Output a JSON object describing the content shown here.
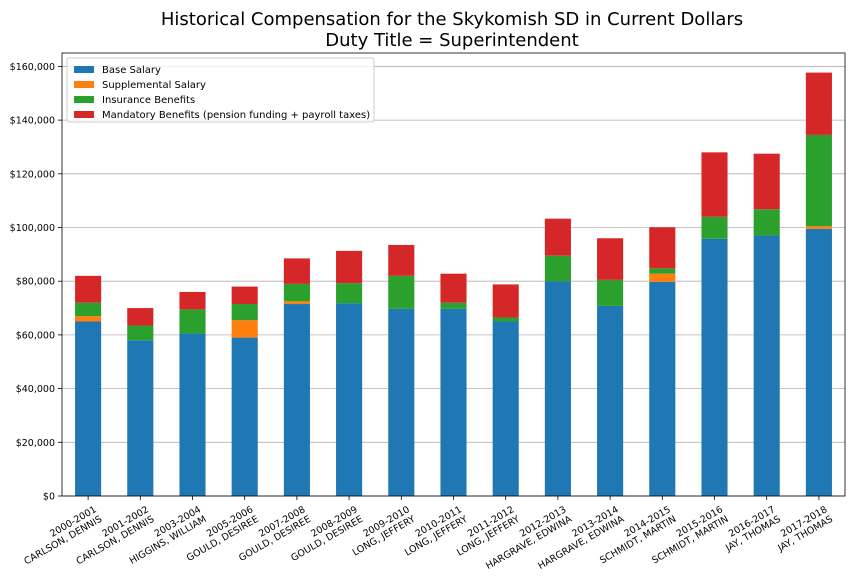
{
  "chart_data": {
    "type": "bar",
    "stacked": true,
    "title": "Historical Compensation for the Skykomish SD in Current Dollars",
    "subtitle": "Duty Title = Superintendent",
    "xlabel": "",
    "ylabel": "",
    "ylim": [
      0,
      165000
    ],
    "yticks": [
      0,
      20000,
      40000,
      60000,
      80000,
      100000,
      120000,
      140000,
      160000
    ],
    "ytick_labels": [
      "$0",
      "$20,000",
      "$40,000",
      "$60,000",
      "$80,000",
      "$100,000",
      "$120,000",
      "$140,000",
      "$160,000"
    ],
    "grid": "horizontal",
    "legend_position": "top-left",
    "categories": [
      [
        "2000-2001",
        "CARLSON, DENNIS"
      ],
      [
        "2001-2002",
        "CARLSON, DENNIS"
      ],
      [
        "2003-2004",
        "HIGGINS, WILLIAM"
      ],
      [
        "2005-2006",
        "GOULD, DESIREE"
      ],
      [
        "2007-2008",
        "GOULD, DESIREE"
      ],
      [
        "2008-2009",
        "GOULD, DESIREE"
      ],
      [
        "2009-2010",
        "LONG, JEFFERY"
      ],
      [
        "2010-2011",
        "LONG, JEFFERY"
      ],
      [
        "2011-2012",
        "LONG, JEFFERY"
      ],
      [
        "2012-2013",
        "HARGRAVE, EDWINA"
      ],
      [
        "2013-2014",
        "HARGRAVE, EDWINA"
      ],
      [
        "2014-2015",
        "SCHMIDT, MARTIN"
      ],
      [
        "2015-2016",
        "SCHMIDT, MARTIN"
      ],
      [
        "2016-2017",
        "JAY, THOMAS"
      ],
      [
        "2017-2018",
        "JAY, THOMAS"
      ]
    ],
    "series": [
      {
        "name": "Base Salary",
        "color": "#1f77b4",
        "values": [
          65000,
          58000,
          60500,
          59000,
          71500,
          71800,
          69700,
          69700,
          65000,
          80000,
          70800,
          79800,
          95800,
          97000,
          99500
        ]
      },
      {
        "name": "Supplemental Salary",
        "color": "#ff7f0e",
        "values": [
          2000,
          0,
          0,
          6500,
          1000,
          0,
          0,
          0,
          0,
          0,
          0,
          3000,
          0,
          0,
          1000
        ]
      },
      {
        "name": "Insurance Benefits",
        "color": "#2ca02c",
        "values": [
          5000,
          5500,
          9000,
          6000,
          6500,
          7500,
          12300,
          2300,
          1500,
          9500,
          9700,
          2000,
          8200,
          9800,
          34000
        ]
      },
      {
        "name": "Mandatory Benefits (pension funding + payroll taxes)",
        "color": "#d62728",
        "values": [
          10000,
          6500,
          6500,
          6500,
          9500,
          12000,
          11500,
          10800,
          12300,
          13800,
          15500,
          15300,
          24000,
          20700,
          23200
        ]
      }
    ]
  }
}
